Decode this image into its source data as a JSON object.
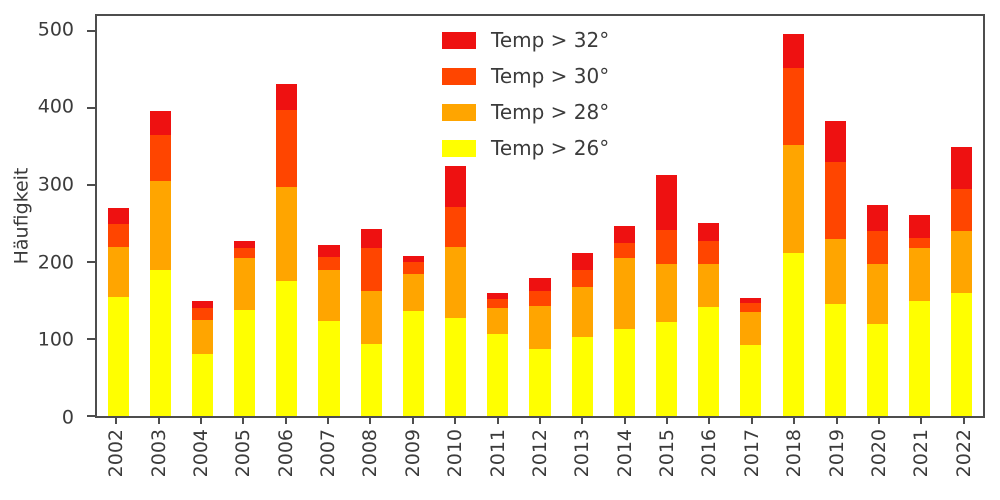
{
  "chart_data": {
    "type": "bar",
    "subtype": "stacked",
    "title": "",
    "xlabel": "",
    "ylabel": "Häufigkeit",
    "ylim": [
      0,
      520
    ],
    "yticks": [
      0,
      100,
      200,
      300,
      400,
      500
    ],
    "grid": false,
    "legend_position": "upper-center-left",
    "categories": [
      "2002",
      "2003",
      "2004",
      "2005",
      "2006",
      "2007",
      "2008",
      "2009",
      "2010",
      "2011",
      "2012",
      "2013",
      "2014",
      "2015",
      "2016",
      "2017",
      "2018",
      "2019",
      "2020",
      "2021",
      "2022"
    ],
    "series": [
      {
        "name": "Temp > 32°",
        "color": "#ee1111",
        "values": [
          20,
          32,
          10,
          9,
          34,
          15,
          25,
          8,
          53,
          8,
          17,
          22,
          22,
          71,
          23,
          7,
          45,
          53,
          35,
          29,
          55
        ]
      },
      {
        "name": "Temp > 30°",
        "color": "#ff4500",
        "values": [
          30,
          60,
          15,
          13,
          100,
          17,
          55,
          15,
          52,
          12,
          20,
          22,
          20,
          44,
          31,
          12,
          100,
          100,
          43,
          14,
          55
        ]
      },
      {
        "name": "Temp > 28°",
        "color": "#ffa500",
        "values": [
          65,
          115,
          45,
          67,
          123,
          67,
          70,
          48,
          92,
          33,
          56,
          65,
          92,
          76,
          55,
          43,
          140,
          85,
          77,
          68,
          80
        ]
      },
      {
        "name": "Temp > 26°",
        "color": "#ffff00",
        "values": [
          155,
          190,
          80,
          138,
          175,
          123,
          93,
          137,
          128,
          107,
          87,
          103,
          113,
          122,
          142,
          92,
          212,
          145,
          120,
          150,
          160
        ]
      }
    ],
    "stack_order_note": "last series (Temp > 26°) at bottom of each stack, first series (Temp > 32°) on top",
    "totals": [
      270,
      397,
      150,
      227,
      432,
      222,
      243,
      208,
      325,
      160,
      180,
      212,
      247,
      313,
      251,
      154,
      497,
      383,
      275,
      261,
      350
    ]
  },
  "colors": {
    "axis": "#4d4d4d",
    "text": "#3b3b3b",
    "background": "#ffffff"
  }
}
